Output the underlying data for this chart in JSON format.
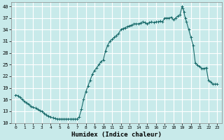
{
  "title": "",
  "xlabel": "Humidex (Indice chaleur)",
  "ylabel": "",
  "background_color": "#c8eaea",
  "grid_color": "#ffffff",
  "line_color": "#1a6b6b",
  "marker_color": "#1a6b6b",
  "ylim": [
    10,
    41
  ],
  "xlim": [
    -0.5,
    23.5
  ],
  "yticks": [
    10,
    13,
    16,
    19,
    22,
    25,
    28,
    31,
    34,
    37,
    40
  ],
  "xticks": [
    0,
    1,
    2,
    3,
    4,
    5,
    6,
    7,
    8,
    9,
    10,
    11,
    12,
    13,
    14,
    15,
    16,
    17,
    18,
    19,
    20,
    21,
    22,
    23
  ],
  "x": [
    0,
    0.25,
    0.5,
    0.75,
    1,
    1.25,
    1.5,
    1.75,
    2,
    2.25,
    2.5,
    2.75,
    3,
    3.25,
    3.5,
    3.75,
    4,
    4.25,
    4.5,
    4.75,
    5,
    5.25,
    5.5,
    5.75,
    6,
    6.25,
    6.5,
    6.75,
    7,
    7.25,
    7.5,
    7.75,
    8,
    8.25,
    8.5,
    8.75,
    9,
    9.25,
    9.5,
    9.75,
    10,
    10.25,
    10.5,
    10.75,
    11,
    11.25,
    11.5,
    11.75,
    12,
    12.25,
    12.5,
    12.75,
    13,
    13.25,
    13.5,
    13.75,
    14,
    14.25,
    14.5,
    14.75,
    15,
    15.25,
    15.5,
    15.75,
    16,
    16.25,
    16.5,
    16.75,
    17,
    17.25,
    17.5,
    17.75,
    18,
    18.25,
    18.5,
    18.75,
    19,
    19.1,
    19.2,
    19.35,
    19.5,
    19.75,
    20,
    20.25,
    20.5,
    20.75,
    21,
    21.25,
    21.5,
    21.75,
    22,
    22.25,
    22.5,
    22.75,
    23
  ],
  "y": [
    17.2,
    17.0,
    16.5,
    16.0,
    15.5,
    15.2,
    14.8,
    14.3,
    14.0,
    13.8,
    13.5,
    13.2,
    13.0,
    12.5,
    12.0,
    11.8,
    11.5,
    11.3,
    11.1,
    11.0,
    11.0,
    11.0,
    11.0,
    11.0,
    11.0,
    11.0,
    11.0,
    11.0,
    11.0,
    11.5,
    13.5,
    16.0,
    18.0,
    19.5,
    21.0,
    22.5,
    23.5,
    24.2,
    25.0,
    25.8,
    26.2,
    28.5,
    30.0,
    31.0,
    31.5,
    32.0,
    32.5,
    33.0,
    34.0,
    34.3,
    34.5,
    34.8,
    35.0,
    35.2,
    35.5,
    35.5,
    35.5,
    35.7,
    36.0,
    35.8,
    35.5,
    35.8,
    36.0,
    35.8,
    36.0,
    36.0,
    36.2,
    36.0,
    37.0,
    37.0,
    37.0,
    37.2,
    36.5,
    37.0,
    37.5,
    37.8,
    40.0,
    39.5,
    38.5,
    37.0,
    36.0,
    34.0,
    32.0,
    30.0,
    25.5,
    24.8,
    24.5,
    24.0,
    24.0,
    24.2,
    21.0,
    20.5,
    20.0,
    20.0,
    20.0
  ]
}
